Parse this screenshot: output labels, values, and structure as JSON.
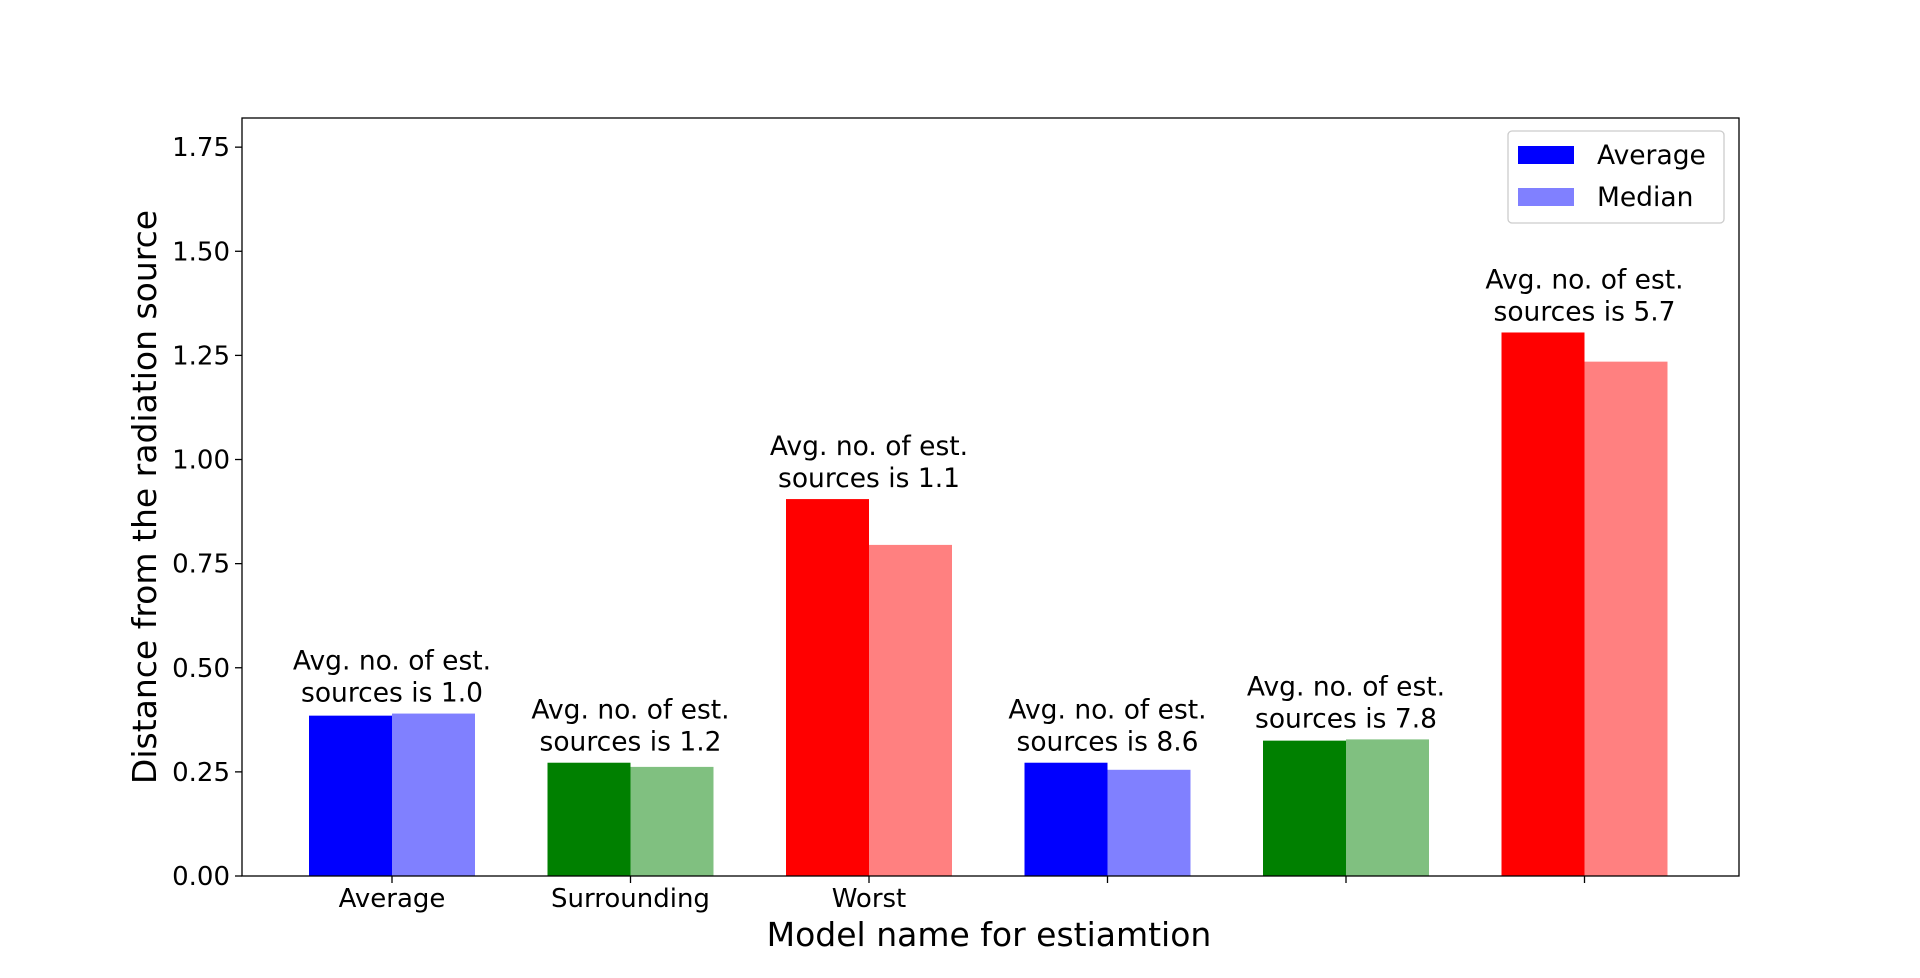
{
  "chart_data": {
    "type": "bar",
    "xlabel": "Model name for estiamtion",
    "ylabel": "Distance from the radiation source",
    "ylim": [
      0,
      1.82
    ],
    "yticks": [
      "0.00",
      "0.25",
      "0.50",
      "0.75",
      "1.00",
      "1.25",
      "1.50",
      "1.75"
    ],
    "ytick_values": [
      0,
      0.25,
      0.5,
      0.75,
      1.0,
      1.25,
      1.5,
      1.75
    ],
    "categories": [
      "Average",
      "Surrounding",
      "Worst",
      "",
      "",
      ""
    ],
    "series": [
      {
        "name": "Average",
        "values": [
          0.385,
          0.272,
          0.905,
          0.272,
          0.325,
          1.305
        ]
      },
      {
        "name": "Median",
        "values": [
          0.39,
          0.262,
          0.795,
          0.255,
          0.328,
          1.235
        ]
      }
    ],
    "group_colors": [
      "#0000ff",
      "#008000",
      "#ff0000",
      "#0000ff",
      "#008000",
      "#ff0000"
    ],
    "median_colors": [
      "#8080ff",
      "#80c080",
      "#ff8080",
      "#8080ff",
      "#80c080",
      "#ff8080"
    ],
    "legend_colors": [
      "#0000ff",
      "#8080ff"
    ],
    "annotations": [
      {
        "line1": "Avg. no. of est.",
        "line2": "sources is 1.0"
      },
      {
        "line1": "Avg. no. of est.",
        "line2": "sources is 1.2"
      },
      {
        "line1": "Avg. no. of est.",
        "line2": "sources is 1.1"
      },
      {
        "line1": "Avg. no. of est.",
        "line2": "sources is 8.6"
      },
      {
        "line1": "Avg. no. of est.",
        "line2": "sources is 7.8"
      },
      {
        "line1": "Avg. no. of est.",
        "line2": "sources is 5.7"
      }
    ],
    "legend_position": "top-right",
    "grid": false
  }
}
